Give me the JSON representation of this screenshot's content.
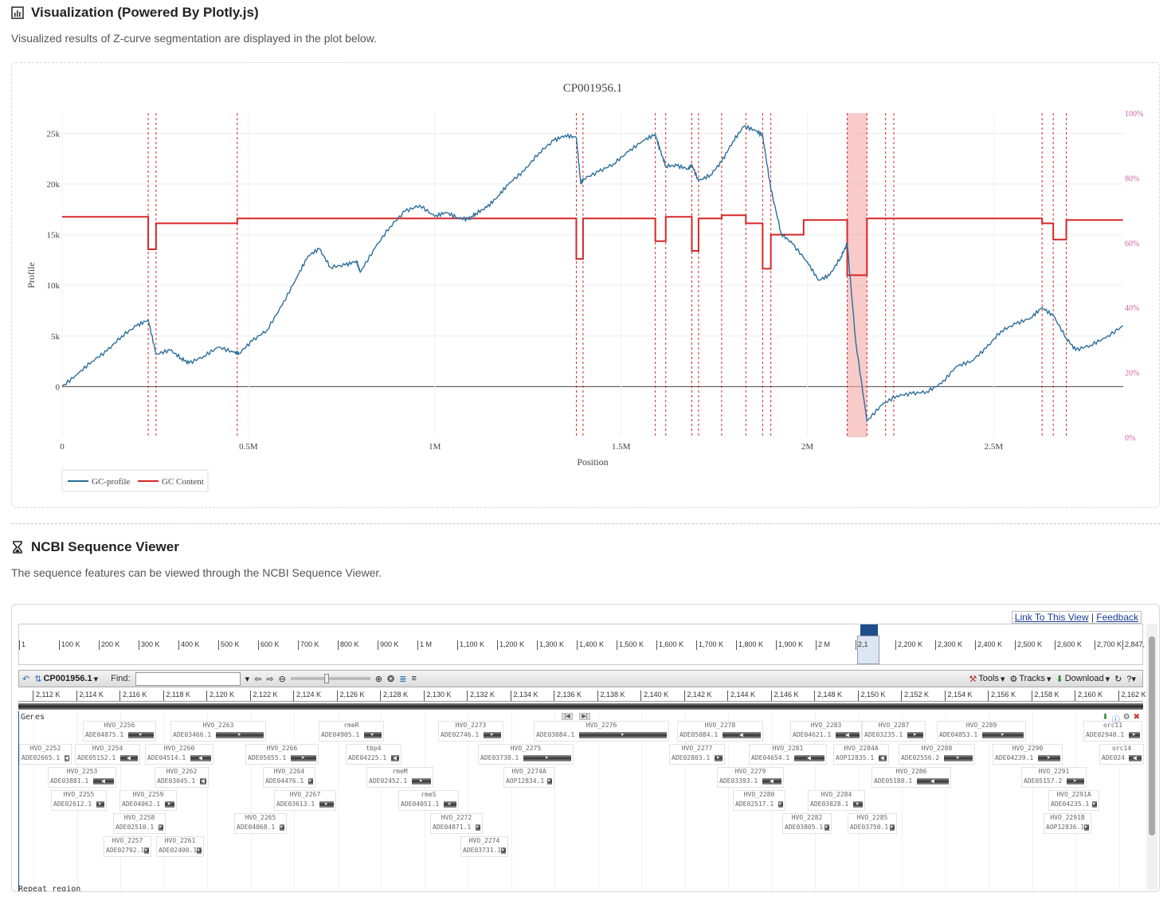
{
  "viz": {
    "title": "Visualization (Powered By Plotly.js)",
    "description": "Visualized results of Z-curve segmentation are displayed in the plot below."
  },
  "ncbi": {
    "title": "NCBI Sequence Viewer",
    "description": "The sequence features can be viewed through the NCBI Sequence Viewer.",
    "link_view": "Link To This View",
    "feedback": "Feedback",
    "seq_id": "CP001956.1",
    "find_label": "Find:",
    "tools": "Tools",
    "tracks": "Tracks",
    "download": "Download",
    "track_genes": "Genes",
    "track_repeat": "Repeat region",
    "overview_ticks": [
      "1",
      "100 K",
      "200 K",
      "300 K",
      "400 K",
      "500 K",
      "600 K",
      "700 K",
      "800 K",
      "900 K",
      "1 M",
      "1,100 K",
      "1,200 K",
      "1,300 K",
      "1,400 K",
      "1,500 K",
      "1,600 K",
      "1,700 K",
      "1,800 K",
      "1,900 K",
      "2 M",
      "2,1",
      "2,200 K",
      "2,300 K",
      "2,400 K",
      "2,500 K",
      "2,600 K",
      "2,700 K",
      "2,847,"
    ],
    "position_ticks": [
      "2,112 K",
      "2,114 K",
      "2,116 K",
      "2,118 K",
      "2,120 K",
      "2,122 K",
      "2,124 K",
      "2,126 K",
      "2,128 K",
      "2,130 K",
      "2,132 K",
      "2,134 K",
      "2,136 K",
      "2,138 K",
      "2,140 K",
      "2,142 K",
      "2,144 K",
      "2,146 K",
      "2,148 K",
      "2,150 K",
      "2,152 K",
      "2,154 K",
      "2,156 K",
      "2,158 K",
      "2,160 K",
      "2,162 K"
    ],
    "genes": [
      {
        "name": "HVO_2256",
        "prot": "ADE04875.1",
        "col": 80,
        "row": 0,
        "w": 92,
        "dir": "r"
      },
      {
        "name": "HVO_2263",
        "prot": "ADE03466.1",
        "col": 190,
        "row": 0,
        "w": 120,
        "dir": "r"
      },
      {
        "name": "rmeR",
        "prot": "ADE04905.1",
        "col": 376,
        "row": 0,
        "w": 82,
        "dir": "r"
      },
      {
        "name": "HVO_2273",
        "prot": "ADE02746.1",
        "col": 526,
        "row": 0,
        "w": 82,
        "dir": "r"
      },
      {
        "name": "HVO_2276",
        "prot": "ADE03084.1",
        "col": 646,
        "row": 0,
        "w": 170,
        "dir": "r"
      },
      {
        "name": "HVO_2278",
        "prot": "ADE05084.1",
        "col": 826,
        "row": 0,
        "w": 108,
        "dir": "l"
      },
      {
        "name": "HVO_2283",
        "prot": "ADE04621.1",
        "col": 968,
        "row": 0,
        "w": 90,
        "dir": "l"
      },
      {
        "name": "HVO_2287",
        "prot": "ADE03235.1",
        "col": 1058,
        "row": 0,
        "w": 80,
        "dir": "r"
      },
      {
        "name": "HVO_2289",
        "prot": "ADE04853.1",
        "col": 1152,
        "row": 0,
        "w": 112,
        "dir": "r"
      },
      {
        "name": "orc11",
        "prot": "ADE02948.1",
        "col": 1336,
        "row": 0,
        "w": 74,
        "dir": "r"
      },
      {
        "name": "HVO_2252",
        "prot": "ADE02665.1",
        "col": 0,
        "row": 1,
        "w": 66,
        "dir": "l"
      },
      {
        "name": "HVO_2254",
        "prot": "ADE05152.1",
        "col": 70,
        "row": 1,
        "w": 82,
        "dir": "l"
      },
      {
        "name": "HVO_2260",
        "prot": "ADE04514.1",
        "col": 158,
        "row": 1,
        "w": 86,
        "dir": "l"
      },
      {
        "name": "HVO_2266",
        "prot": "ADE05055.1",
        "col": 284,
        "row": 1,
        "w": 92,
        "dir": "r"
      },
      {
        "name": "tbp4",
        "prot": "ADE04225.1",
        "col": 410,
        "row": 1,
        "w": 70,
        "dir": "l"
      },
      {
        "name": "HVO_2275",
        "prot": "ADE03738.1",
        "col": 576,
        "row": 1,
        "w": 120,
        "dir": "r"
      },
      {
        "name": "HVO_2277",
        "prot": "ADE02803.1",
        "col": 816,
        "row": 1,
        "w": 70,
        "dir": "r"
      },
      {
        "name": "HVO_2281",
        "prot": "ADE04654.1",
        "col": 916,
        "row": 1,
        "w": 98,
        "dir": "l"
      },
      {
        "name": "HVO_2284A",
        "prot": "AOP12835.1",
        "col": 1022,
        "row": 1,
        "w": 70,
        "dir": "l"
      },
      {
        "name": "HVO_2288",
        "prot": "ADE02556.2",
        "col": 1104,
        "row": 1,
        "w": 96,
        "dir": "r"
      },
      {
        "name": "HVO_2290",
        "prot": "ADE04239.1",
        "col": 1222,
        "row": 1,
        "w": 88,
        "dir": "r"
      },
      {
        "name": "orc14",
        "prot": "ADE024",
        "col": 1356,
        "row": 1,
        "w": 56,
        "dir": "l"
      },
      {
        "name": "HVO_2253",
        "prot": "ADE03881.1",
        "col": 36,
        "row": 2,
        "w": 86,
        "dir": "l"
      },
      {
        "name": "HVO_2262",
        "prot": "ADE03045.1",
        "col": 170,
        "row": 2,
        "w": 68,
        "dir": "l"
      },
      {
        "name": "HVO_2264",
        "prot": "ADE04476.1",
        "col": 306,
        "row": 2,
        "w": 66,
        "dir": "r"
      },
      {
        "name": "rmeM",
        "prot": "ADE02452.1",
        "col": 436,
        "row": 2,
        "w": 84,
        "dir": "r"
      },
      {
        "name": "HVO_2274A",
        "prot": "AOP12834.1",
        "col": 608,
        "row": 2,
        "w": 64,
        "dir": "r"
      },
      {
        "name": "HVO_2279",
        "prot": "ADE03393.1",
        "col": 876,
        "row": 2,
        "w": 84,
        "dir": "l"
      },
      {
        "name": "HVO_2286",
        "prot": "ADE05188.1",
        "col": 1070,
        "row": 2,
        "w": 100,
        "dir": "l"
      },
      {
        "name": "HVO_2291",
        "prot": "ADE05157.2",
        "col": 1258,
        "row": 2,
        "w": 82,
        "dir": "r"
      },
      {
        "name": "HVO_2255",
        "prot": "ADE02612.1",
        "col": 40,
        "row": 3,
        "w": 70,
        "dir": "r"
      },
      {
        "name": "HVO_2259",
        "prot": "ADE04062.1",
        "col": 126,
        "row": 3,
        "w": 72,
        "dir": "r"
      },
      {
        "name": "HVO_2267",
        "prot": "ADE03613.1",
        "col": 320,
        "row": 3,
        "w": 78,
        "dir": "r"
      },
      {
        "name": "rmeS",
        "prot": "ADE04051.1",
        "col": 476,
        "row": 3,
        "w": 76,
        "dir": "r"
      },
      {
        "name": "HVO_2280",
        "prot": "ADE02517.1",
        "col": 896,
        "row": 3,
        "w": 66,
        "dir": "r"
      },
      {
        "name": "HVO_2284",
        "prot": "ADE03828.1",
        "col": 990,
        "row": 3,
        "w": 72,
        "dir": "r"
      },
      {
        "name": "HVO_2291A",
        "prot": "ADE04235.1",
        "col": 1292,
        "row": 3,
        "w": 64,
        "dir": "r"
      },
      {
        "name": "HVO_2258",
        "prot": "ADE02510.1",
        "col": 118,
        "row": 4,
        "w": 66,
        "dir": "r"
      },
      {
        "name": "HVO_2265",
        "prot": "ADE04068.1",
        "col": 270,
        "row": 4,
        "w": 66,
        "dir": "r"
      },
      {
        "name": "HVO_2272",
        "prot": "ADE04871.1",
        "col": 516,
        "row": 4,
        "w": 66,
        "dir": "r"
      },
      {
        "name": "HVO_2282",
        "prot": "ADE03805.1",
        "col": 958,
        "row": 4,
        "w": 62,
        "dir": "r"
      },
      {
        "name": "HVO_2285",
        "prot": "ADE03750.1",
        "col": 1040,
        "row": 4,
        "w": 62,
        "dir": "r"
      },
      {
        "name": "HVO_2291B",
        "prot": "AOP12836.1",
        "col": 1286,
        "row": 4,
        "w": 60,
        "dir": "r"
      },
      {
        "name": "HVO_2257",
        "prot": "ADE02792.1",
        "col": 106,
        "row": 5,
        "w": 60,
        "dir": "r"
      },
      {
        "name": "HVO_2261",
        "prot": "ADE02400.1",
        "col": 172,
        "row": 5,
        "w": 60,
        "dir": "r"
      },
      {
        "name": "HVO_2274",
        "prot": "ADE03731.1",
        "col": 554,
        "row": 5,
        "w": 60,
        "dir": "r"
      }
    ]
  },
  "chart_data": {
    "type": "line",
    "title": "CP001956.1",
    "xlabel": "Position",
    "ylabel": "Profile",
    "xlim": [
      0,
      2847757
    ],
    "ylim": [
      -5000,
      27000
    ],
    "y2lim": [
      0,
      100
    ],
    "xticks": [
      {
        "v": 0,
        "label": "0"
      },
      {
        "v": 500000,
        "label": "0.5M"
      },
      {
        "v": 1000000,
        "label": "1M"
      },
      {
        "v": 1500000,
        "label": "1.5M"
      },
      {
        "v": 2000000,
        "label": "2M"
      },
      {
        "v": 2500000,
        "label": "2.5M"
      }
    ],
    "yticks": [
      {
        "v": 0,
        "label": "0"
      },
      {
        "v": 5000,
        "label": "5k"
      },
      {
        "v": 10000,
        "label": "10k"
      },
      {
        "v": 15000,
        "label": "15k"
      },
      {
        "v": 20000,
        "label": "20k"
      },
      {
        "v": 25000,
        "label": "25k"
      }
    ],
    "y2ticks": [
      {
        "v": 0,
        "label": "0%"
      },
      {
        "v": 20,
        "label": "20%"
      },
      {
        "v": 40,
        "label": "40%"
      },
      {
        "v": 60,
        "label": "60%"
      },
      {
        "v": 80,
        "label": "80%"
      },
      {
        "v": 100,
        "label": "100%"
      }
    ],
    "legend": "bottom-left",
    "colors": {
      "gc_profile": "#2c6e9b",
      "gc_content": "#d62728",
      "boundary": "#d62728",
      "highlight": "#f4a6a6",
      "y2_tick": "#cc66aa"
    },
    "boundaries": [
      231000,
      252000,
      470000,
      1380000,
      1398000,
      1592000,
      1620000,
      1690000,
      1708000,
      1770000,
      1835000,
      1880000,
      1902000,
      2210000,
      2232000,
      2630000,
      2660000,
      2695000
    ],
    "highlight": [
      2107000,
      2160000
    ],
    "series": [
      {
        "name": "GC-profile",
        "x": [
          0,
          40000,
          80000,
          120000,
          160000,
          200000,
          231000,
          252000,
          290000,
          320000,
          340000,
          380000,
          420000,
          460000,
          475000,
          510000,
          550000,
          590000,
          630000,
          660000,
          690000,
          720000,
          760000,
          790000,
          800000,
          840000,
          880000,
          920000,
          960000,
          1000000,
          1030000,
          1060000,
          1090000,
          1110000,
          1140000,
          1170000,
          1200000,
          1240000,
          1280000,
          1320000,
          1350000,
          1380000,
          1392000,
          1398000,
          1440000,
          1480000,
          1520000,
          1560000,
          1592000,
          1605000,
          1620000,
          1650000,
          1680000,
          1690000,
          1708000,
          1740000,
          1770000,
          1800000,
          1830000,
          1860000,
          1880000,
          1902000,
          1930000,
          1960000,
          2000000,
          2030000,
          2060000,
          2090000,
          2107000,
          2130000,
          2160000,
          2200000,
          2240000,
          2280000,
          2320000,
          2360000,
          2400000,
          2440000,
          2480000,
          2520000,
          2560000,
          2600000,
          2630000,
          2660000,
          2695000,
          2720000,
          2760000,
          2800000,
          2847000
        ],
        "y": [
          0,
          1200,
          2500,
          3500,
          5000,
          6000,
          6600,
          3200,
          3600,
          2800,
          2300,
          3000,
          3900,
          3400,
          3300,
          4500,
          5600,
          8000,
          10800,
          12900,
          13600,
          11800,
          12000,
          12400,
          11300,
          13700,
          15800,
          17300,
          17900,
          16800,
          17200,
          16700,
          16500,
          17100,
          17700,
          18800,
          20100,
          21300,
          23100,
          24300,
          24800,
          24600,
          20000,
          20500,
          21200,
          22000,
          23200,
          24300,
          24900,
          23300,
          21800,
          21800,
          21500,
          21900,
          20300,
          20900,
          22200,
          24200,
          25700,
          25300,
          24800,
          19500,
          15100,
          14100,
          12300,
          10500,
          11000,
          12800,
          14100,
          4400,
          -3400,
          -1800,
          -900,
          -700,
          -500,
          300,
          2000,
          2500,
          3800,
          5500,
          6200,
          6800,
          7800,
          7000,
          4800,
          3600,
          4100,
          4800,
          6000
        ]
      },
      {
        "name": "GC Content",
        "x": [
          0,
          231000,
          231000,
          252000,
          252000,
          470000,
          470000,
          1380000,
          1380000,
          1398000,
          1398000,
          1592000,
          1592000,
          1620000,
          1620000,
          1690000,
          1690000,
          1708000,
          1708000,
          1770000,
          1770000,
          1835000,
          1835000,
          1880000,
          1880000,
          1902000,
          1902000,
          1990000,
          1990000,
          2107000,
          2107000,
          2160000,
          2160000,
          2630000,
          2630000,
          2660000,
          2660000,
          2695000,
          2695000,
          2847000
        ],
        "y": [
          68,
          68,
          58,
          58,
          66,
          66,
          67.5,
          67.5,
          55,
          55,
          67.5,
          67.5,
          60.5,
          60.5,
          68,
          68,
          57.5,
          57.5,
          67.5,
          67.5,
          68.5,
          68.5,
          66,
          66,
          52,
          52,
          62.5,
          62.5,
          67,
          67,
          50,
          50,
          67.5,
          67.5,
          66,
          66,
          61,
          61,
          67,
          67
        ]
      }
    ]
  }
}
